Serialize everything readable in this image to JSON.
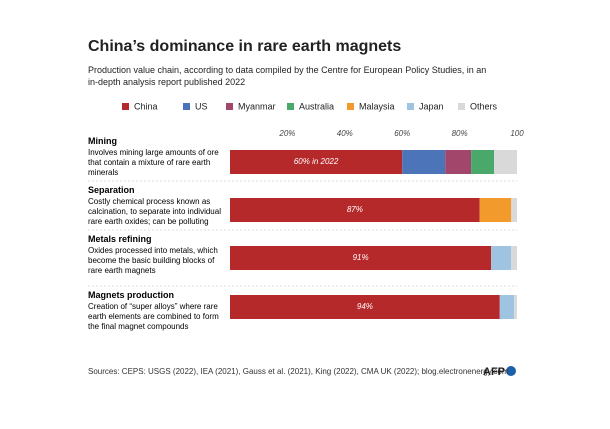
{
  "chart_data": {
    "type": "stacked-barh",
    "title": "China’s dominance in rare earth magnets",
    "subtitle": "Production value chain, according to data compiled by the Centre for European Policy Studies, in an in-depth analysis report published 2022",
    "categories": [
      "Mining",
      "Separation",
      "Metals refining",
      "Magnets production"
    ],
    "category_descriptions": [
      "Involves mining large amounts of ore that contain a mixture of rare earth minerals",
      "Costly chemical process known as calcination, to separate into individual rare earth oxides; can be polluting",
      "Oxides processed into metals, which become the basic building blocks of rare earth magnets",
      "Creation of “super alloys” where rare earth elements are combined to form the final magnet compounds"
    ],
    "series": [
      {
        "name": "China",
        "color": "#b5292b",
        "values": [
          60,
          87,
          91,
          94
        ],
        "value_labels": [
          "60% in 2022",
          "87%",
          "91%",
          "94%"
        ]
      },
      {
        "name": "US",
        "color": "#4b74b9",
        "values": [
          15,
          null,
          null,
          null
        ]
      },
      {
        "name": "Myanmar",
        "color": "#a2466c",
        "values": [
          9,
          null,
          null,
          null
        ]
      },
      {
        "name": "Australia",
        "color": "#4aa96a",
        "values": [
          8,
          null,
          null,
          null
        ]
      },
      {
        "name": "Malaysia",
        "color": "#f39a2c",
        "values": [
          null,
          11,
          null,
          null
        ]
      },
      {
        "name": "Japan",
        "color": "#9fc4e2",
        "values": [
          null,
          null,
          7,
          5
        ]
      },
      {
        "name": "Others",
        "color": "#d9d9d9",
        "values": [
          8,
          2,
          2,
          1
        ]
      }
    ],
    "xlim": [
      0,
      100
    ],
    "xticks": [
      {
        "value": 20,
        "label": "20%"
      },
      {
        "value": 40,
        "label": "40%"
      },
      {
        "value": 60,
        "label": "60%"
      },
      {
        "value": 80,
        "label": "80%"
      },
      100
    ],
    "source": "Sources: CEPS: USGS (2022), IEA (2021), Gauss et al. (2021), King (2022), CMA UK (2022); blog.electronenergy.com",
    "logo": "AFP"
  }
}
